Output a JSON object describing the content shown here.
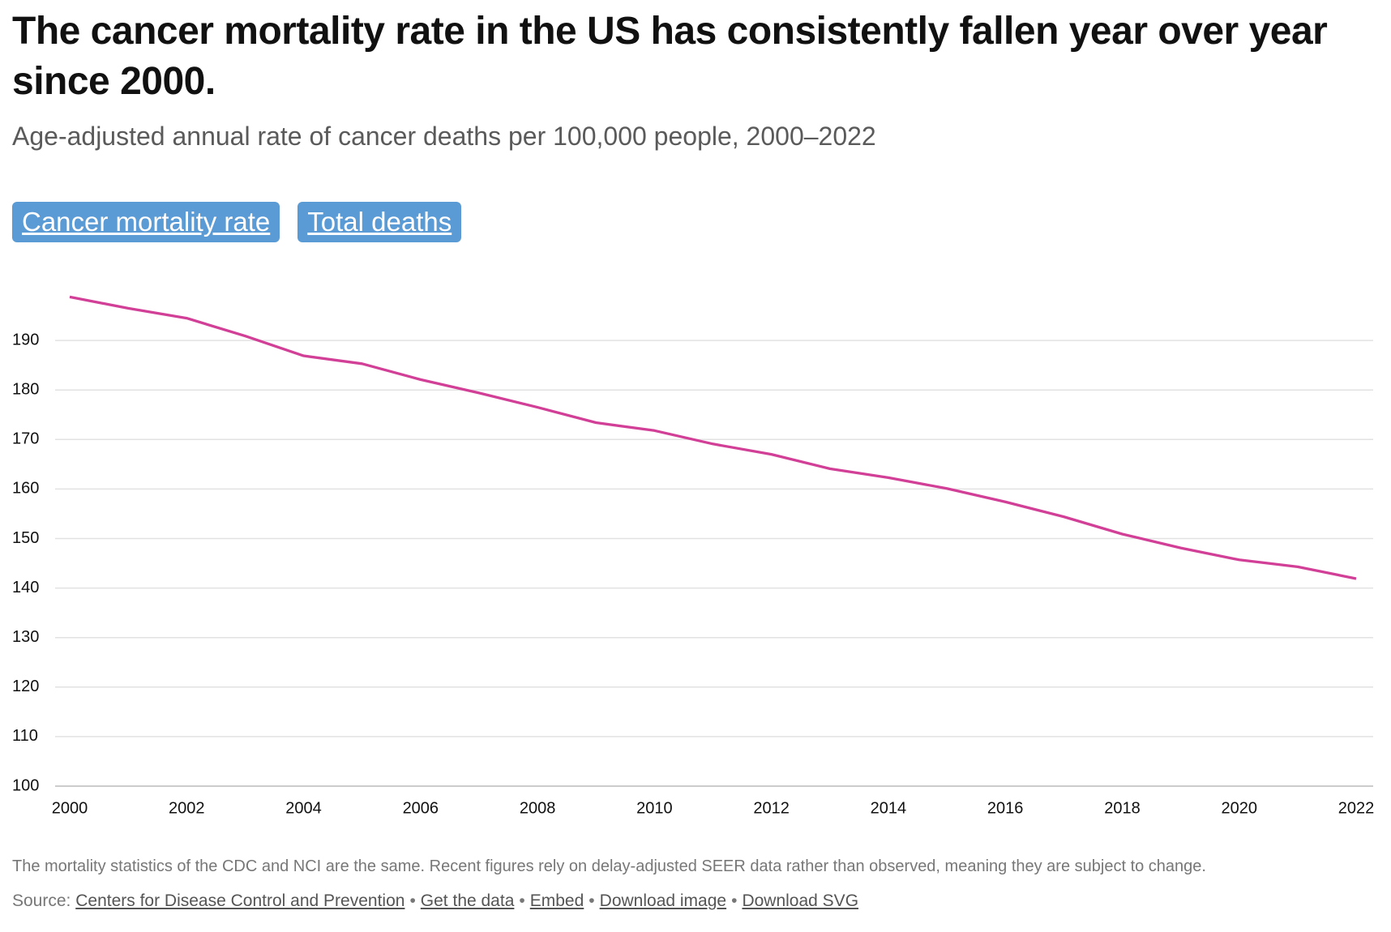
{
  "header": {
    "title": "The cancer mortality rate in the US has consistently fallen year over year since 2000.",
    "subtitle": "Age-adjusted annual rate of cancer deaths per 100,000 people, 2000–2022"
  },
  "tabs": [
    "Cancer mortality rate",
    "Total deaths"
  ],
  "chart_data": {
    "type": "line",
    "x": [
      2000,
      2001,
      2002,
      2003,
      2004,
      2005,
      2006,
      2007,
      2008,
      2009,
      2010,
      2011,
      2012,
      2013,
      2014,
      2015,
      2016,
      2017,
      2018,
      2019,
      2020,
      2021,
      2022
    ],
    "series": [
      {
        "color": "#d23f97",
        "values": [
          198.8,
          196.5,
          194.5,
          190.9,
          186.9,
          185.3,
          182.1,
          179.4,
          176.5,
          173.4,
          171.8,
          169.1,
          167.0,
          164.1,
          162.3,
          160.1,
          157.4,
          154.4,
          150.9,
          148.1,
          145.7,
          144.3,
          141.9
        ]
      }
    ],
    "xlim": [
      2000,
      2022
    ],
    "xticks": [
      2000,
      2002,
      2004,
      2006,
      2008,
      2010,
      2012,
      2014,
      2016,
      2018,
      2020,
      2022
    ],
    "ylim": [
      100,
      200
    ],
    "yticks": [
      100,
      110,
      120,
      130,
      140,
      150,
      160,
      170,
      180,
      190
    ],
    "grid": true
  },
  "footer": {
    "note": "The mortality statistics of the CDC and NCI are the same. Recent figures rely on delay-adjusted SEER data rather than observed, meaning they are subject to change.",
    "source_label": "Source:",
    "separator": "•",
    "links": [
      "Centers for Disease Control and Prevention",
      "Get the data",
      "Embed",
      "Download image",
      "Download SVG"
    ]
  }
}
